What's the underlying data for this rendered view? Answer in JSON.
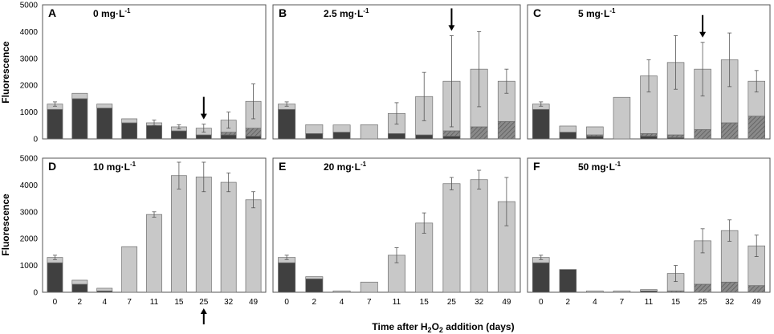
{
  "figure": {
    "ylabel": "Fluorescence",
    "xlabel_prefix": "Time after H",
    "xlabel_sub1": "2",
    "xlabel_mid": "O",
    "xlabel_sub2": "2",
    "xlabel_suffix": " addition (days)"
  },
  "colors": {
    "dark": "#404040",
    "light": "#c8c8c8",
    "hatched": "#808080",
    "border": "#555555"
  },
  "chart_data": {
    "type": "bar",
    "stacked": true,
    "categories": [
      "0",
      "2",
      "4",
      "7",
      "11",
      "15",
      "25",
      "32",
      "49"
    ],
    "ylim": [
      0,
      5000
    ],
    "yticks": [
      "0",
      "1000",
      "2000",
      "3000",
      "4000",
      "5000"
    ],
    "series_legend": [
      "dark",
      "hatched",
      "light"
    ],
    "panels": [
      {
        "letter": "A",
        "title": "0 mg·L",
        "title_sup": "-1",
        "arrow": {
          "category": "25",
          "direction": "down"
        },
        "dark": [
          1100,
          1500,
          1150,
          600,
          500,
          300,
          150,
          150,
          100
        ],
        "hatched": [
          0,
          0,
          0,
          0,
          0,
          0,
          0,
          100,
          300
        ],
        "light": [
          200,
          200,
          150,
          150,
          100,
          150,
          250,
          450,
          1000
        ],
        "errors": [
          80,
          0,
          0,
          0,
          100,
          80,
          150,
          300,
          650
        ]
      },
      {
        "letter": "B",
        "title": "2.5 mg·L",
        "title_sup": "-1",
        "arrow": {
          "category": "25",
          "direction": "down"
        },
        "dark": [
          1100,
          200,
          250,
          0,
          200,
          150,
          100,
          0,
          0
        ],
        "hatched": [
          0,
          0,
          0,
          0,
          0,
          0,
          200,
          450,
          650
        ],
        "light": [
          200,
          330,
          270,
          530,
          750,
          1430,
          1850,
          2150,
          1500
        ],
        "errors": [
          80,
          0,
          0,
          0,
          400,
          900,
          1700,
          1400,
          450
        ]
      },
      {
        "letter": "C",
        "title": "5 mg·L",
        "title_sup": "-1",
        "arrow": {
          "category": "25",
          "direction": "down"
        },
        "dark": [
          1100,
          250,
          100,
          0,
          100,
          50,
          0,
          0,
          0
        ],
        "hatched": [
          0,
          0,
          50,
          0,
          100,
          100,
          350,
          600,
          850
        ],
        "light": [
          200,
          230,
          300,
          1550,
          2150,
          2700,
          2250,
          2350,
          1300
        ],
        "errors": [
          80,
          0,
          0,
          0,
          600,
          1000,
          1000,
          1000,
          400
        ]
      },
      {
        "letter": "D",
        "title": "10 mg·L",
        "title_sup": "-1",
        "arrow": {
          "category": "25",
          "direction": "up-below"
        },
        "dark": [
          1100,
          300,
          50,
          0,
          0,
          0,
          0,
          0,
          0
        ],
        "hatched": [
          0,
          0,
          0,
          0,
          0,
          0,
          0,
          0,
          0
        ],
        "light": [
          200,
          150,
          100,
          1700,
          2900,
          4350,
          4300,
          4100,
          3450
        ],
        "errors": [
          80,
          0,
          0,
          0,
          100,
          500,
          550,
          350,
          300
        ]
      },
      {
        "letter": "E",
        "title": "20 mg·L",
        "title_sup": "-1",
        "arrow": null,
        "dark": [
          1100,
          500,
          0,
          0,
          0,
          0,
          0,
          0,
          0
        ],
        "hatched": [
          0,
          0,
          0,
          0,
          0,
          0,
          0,
          0,
          0
        ],
        "light": [
          200,
          80,
          50,
          380,
          1380,
          2580,
          4050,
          4200,
          3380
        ],
        "errors": [
          80,
          0,
          0,
          0,
          280,
          380,
          230,
          350,
          900
        ]
      },
      {
        "letter": "F",
        "title": "50 mg·L",
        "title_sup": "-1",
        "arrow": null,
        "dark": [
          1100,
          850,
          0,
          0,
          50,
          0,
          0,
          0,
          0
        ],
        "hatched": [
          0,
          0,
          0,
          0,
          0,
          50,
          300,
          380,
          250
        ],
        "light": [
          200,
          0,
          50,
          50,
          50,
          650,
          1620,
          1920,
          1480
        ],
        "errors": [
          80,
          0,
          0,
          0,
          0,
          300,
          450,
          400,
          400
        ]
      }
    ]
  }
}
